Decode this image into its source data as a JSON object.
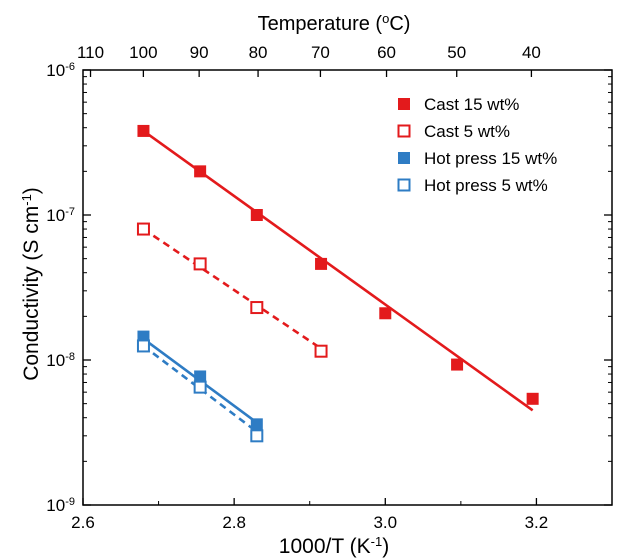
{
  "chart_data": {
    "type": "scatter",
    "x_axis": {
      "label": "1000/T (K",
      "label_sup": "-1",
      "label_close": ")",
      "range": [
        2.6,
        3.3
      ],
      "ticks": [
        2.6,
        2.8,
        3.0,
        3.2
      ],
      "tick_labels": [
        "2.6",
        "2.8",
        "3.0",
        "3.2"
      ]
    },
    "top_axis": {
      "label": "Temperature (",
      "label_sup": "o",
      "label_close": "C)",
      "ticks_celsius": [
        110,
        100,
        90,
        80,
        70,
        60,
        50,
        40
      ],
      "tick_labels": [
        "110",
        "100",
        "90",
        "80",
        "70",
        "60",
        "50",
        "40"
      ]
    },
    "y_axis": {
      "label": "Conductivity (S cm",
      "label_sup": "-1",
      "label_close": ")",
      "scale": "log",
      "range": [
        1e-09,
        1e-06
      ],
      "tick_base": "10",
      "tick_exponents": [
        "-9",
        "-8",
        "-7",
        "-6"
      ]
    },
    "legend_position": "top-right",
    "grid": false,
    "series": [
      {
        "name": "Cast 15 wt%",
        "color": "#e31a1c",
        "marker": "filled-square",
        "line": "solid",
        "x": [
          2.68,
          2.755,
          2.83,
          2.915,
          3.0,
          3.095,
          3.195
        ],
        "y": [
          3.8e-07,
          2e-07,
          1e-07,
          4.6e-08,
          2.1e-08,
          9.3e-09,
          5.4e-09
        ],
        "fit": {
          "x": [
            2.68,
            3.195
          ],
          "y": [
            3.8e-07,
            4.5e-09
          ]
        }
      },
      {
        "name": "Cast 5 wt%",
        "color": "#e31a1c",
        "marker": "open-square",
        "line": "dashed",
        "x": [
          2.68,
          2.755,
          2.83,
          2.915
        ],
        "y": [
          8e-08,
          4.6e-08,
          2.3e-08,
          1.15e-08
        ],
        "fit": {
          "x": [
            2.68,
            2.915
          ],
          "y": [
            8e-08,
            1.2e-08
          ]
        }
      },
      {
        "name": "Hot press 15 wt%",
        "color": "#2e7cc4",
        "marker": "filled-square",
        "line": "solid",
        "x": [
          2.68,
          2.755,
          2.83
        ],
        "y": [
          1.45e-08,
          7.7e-09,
          3.6e-09
        ],
        "fit": {
          "x": [
            2.68,
            2.83
          ],
          "y": [
            1.4e-08,
            3.7e-09
          ]
        }
      },
      {
        "name": "Hot press 5 wt%",
        "color": "#2e7cc4",
        "marker": "open-square",
        "line": "dashed",
        "x": [
          2.68,
          2.755,
          2.83
        ],
        "y": [
          1.25e-08,
          6.5e-09,
          3e-09
        ],
        "fit": {
          "x": [
            2.68,
            2.83
          ],
          "y": [
            1.25e-08,
            3.2e-09
          ]
        }
      }
    ]
  }
}
